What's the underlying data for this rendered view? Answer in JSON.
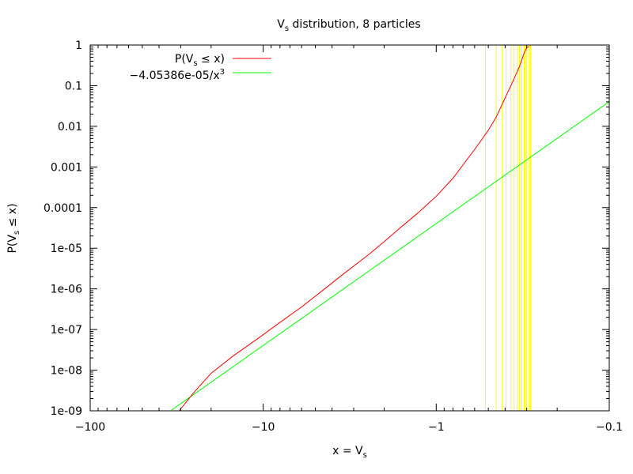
{
  "chart_data": {
    "type": "line",
    "title": {
      "pre": "V",
      "sub": "s",
      "post": " distribution, 8 particles"
    },
    "xlabel": {
      "pre": "x = V",
      "sub": "s",
      "post": ""
    },
    "ylabel": {
      "pre": "P(V",
      "sub": "s",
      "post": " ≤ x)"
    },
    "x_axis": {
      "scale": "negative-log",
      "range": [
        -100,
        -0.1
      ],
      "ticks": [
        -100,
        -10,
        -1,
        -0.1
      ],
      "tick_labels": [
        "−100",
        "−10",
        "−1",
        "−0.1"
      ]
    },
    "y_axis": {
      "scale": "log",
      "range": [
        1e-09,
        1
      ],
      "ticks": [
        1e-09,
        1e-08,
        1e-07,
        1e-06,
        1e-05,
        0.0001,
        0.001,
        0.01,
        0.1,
        1
      ],
      "tick_labels": [
        "1e-09",
        "1e-08",
        "1e-07",
        "1e-06",
        "1e-05",
        "0.0001",
        "0.001",
        "0.01",
        "0.1",
        "1"
      ]
    },
    "grid": false,
    "legend_position": "top-left",
    "series": [
      {
        "legend": {
          "pre": "P(V",
          "sub": "s",
          "post": " ≤ x)"
        },
        "color": "#ff0000",
        "x": [
          -30.6,
          -25.4,
          -20,
          -15,
          -12,
          -10,
          -8,
          -6,
          -4.5,
          -3.5,
          -2.5,
          -2,
          -1.6,
          -1.3,
          -1,
          -0.8,
          -0.6,
          -0.5,
          -0.45,
          -0.4,
          -0.36,
          -0.33,
          -0.31,
          -0.3,
          -0.29
        ],
        "y": [
          1e-09,
          2.7e-09,
          8.4e-09,
          2.2e-08,
          4.3e-08,
          7.5e-08,
          1.5e-07,
          3.6e-07,
          9.4e-07,
          2.2e-06,
          6.6e-06,
          1.45e-05,
          3.3e-05,
          6.9e-05,
          0.00019,
          0.00053,
          0.0027,
          0.008,
          0.017,
          0.05,
          0.13,
          0.3,
          0.65,
          0.85,
          0.93
        ]
      },
      {
        "legend": {
          "pre": "−4.05386e-05/x",
          "sup": "3",
          "post": ""
        },
        "color": "#00ff00",
        "formula": {
          "coefficient": -4.05386e-05,
          "exponent": -3
        }
      }
    ],
    "vertical_markers": {
      "color": "#ffff00",
      "x": [
        -0.52,
        -0.45,
        -0.415,
        -0.395,
        -0.37,
        -0.355,
        -0.34,
        -0.33,
        -0.32,
        -0.31,
        -0.305,
        -0.3,
        -0.29,
        -0.285
      ]
    }
  }
}
